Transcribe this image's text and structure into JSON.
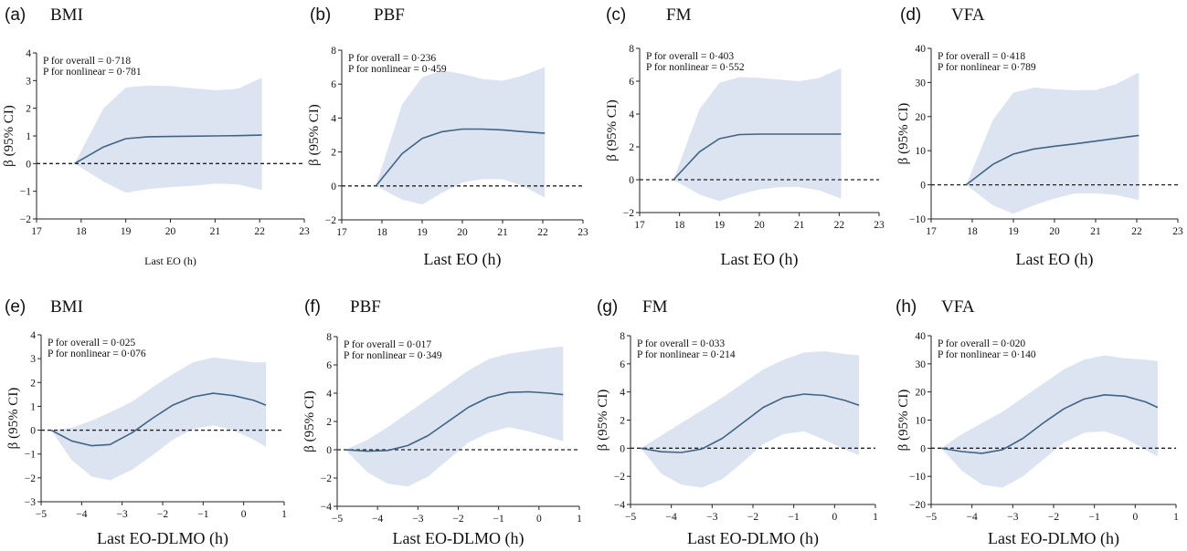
{
  "colors": {
    "band": "#dde4f1",
    "line": "#3e6485",
    "zero": "#222222",
    "axis": "#222222"
  },
  "chart_data": [
    {
      "type": "line",
      "panel": "(a)",
      "title": "BMI",
      "xlabel": "Last EO (h)",
      "ylabel": "β (95% CI)",
      "p_overall": "P for overall = 0·718",
      "p_nonlinear": "P for nonlinear = 0·781",
      "xlim": [
        17,
        23
      ],
      "ylim": [
        -2,
        4
      ],
      "xticks": [
        17,
        18,
        19,
        20,
        21,
        22,
        23
      ],
      "yticks": [
        -2,
        -1,
        0,
        1,
        2,
        3,
        4
      ],
      "x": [
        17.85,
        18.5,
        19,
        19.5,
        20,
        20.5,
        21,
        21.5,
        22.05
      ],
      "y": [
        0,
        0.6,
        0.9,
        0.97,
        0.98,
        0.99,
        1.0,
        1.01,
        1.03
      ],
      "upper": [
        0,
        2.0,
        2.75,
        2.82,
        2.8,
        2.72,
        2.65,
        2.7,
        3.1
      ],
      "lower": [
        0,
        -0.65,
        -1.05,
        -0.92,
        -0.85,
        -0.8,
        -0.72,
        -0.75,
        -0.95
      ]
    },
    {
      "type": "line",
      "panel": "(b)",
      "title": "PBF",
      "xlabel": "Last EO (h)",
      "ylabel": "β (95% CI)",
      "p_overall": "P for overall = 0·236",
      "p_nonlinear": "P for nonlinear = 0·459",
      "xlim": [
        17,
        23
      ],
      "ylim": [
        -2,
        8
      ],
      "xticks": [
        17,
        18,
        19,
        20,
        21,
        22,
        23
      ],
      "yticks": [
        -2,
        0,
        2,
        4,
        6,
        8
      ],
      "x": [
        17.85,
        18.5,
        19,
        19.5,
        20,
        20.5,
        21,
        21.5,
        22.05
      ],
      "y": [
        0,
        1.9,
        2.8,
        3.2,
        3.35,
        3.35,
        3.3,
        3.2,
        3.1
      ],
      "upper": [
        0,
        4.8,
        6.4,
        6.8,
        6.6,
        6.3,
        6.2,
        6.5,
        7.0
      ],
      "lower": [
        0,
        -0.8,
        -1.1,
        -0.4,
        0.2,
        0.4,
        0.4,
        0.0,
        -0.7
      ]
    },
    {
      "type": "line",
      "panel": "(c)",
      "title": "FM",
      "xlabel": "Last EO (h)",
      "ylabel": "β (95% CI)",
      "p_overall": "P for overall = 0·403",
      "p_nonlinear": "P for nonlinear = 0·552",
      "xlim": [
        17,
        23
      ],
      "ylim": [
        -2,
        8
      ],
      "xticks": [
        17,
        18,
        19,
        20,
        21,
        22,
        23
      ],
      "yticks": [
        -2,
        0,
        2,
        4,
        6,
        8
      ],
      "x": [
        17.85,
        18.5,
        19,
        19.5,
        20,
        20.5,
        21,
        21.5,
        22.05
      ],
      "y": [
        0,
        1.7,
        2.5,
        2.75,
        2.78,
        2.78,
        2.78,
        2.78,
        2.78
      ],
      "upper": [
        0,
        4.3,
        5.9,
        6.25,
        6.2,
        6.1,
        6.0,
        6.2,
        6.8
      ],
      "lower": [
        0,
        -0.9,
        -1.3,
        -0.9,
        -0.6,
        -0.45,
        -0.45,
        -0.65,
        -1.15
      ]
    },
    {
      "type": "line",
      "panel": "(d)",
      "title": "VFA",
      "xlabel": "Last EO (h)",
      "ylabel": "β (95% CI)",
      "p_overall": "P for overall = 0·418",
      "p_nonlinear": "P for nonlinear = 0·789",
      "xlim": [
        17,
        23
      ],
      "ylim": [
        -10,
        40
      ],
      "xticks": [
        17,
        18,
        19,
        20,
        21,
        22,
        23
      ],
      "yticks": [
        -10,
        0,
        10,
        20,
        30,
        40
      ],
      "x": [
        17.85,
        18.5,
        19,
        19.5,
        20,
        20.5,
        21,
        21.5,
        22.05
      ],
      "y": [
        0,
        6.0,
        9.0,
        10.5,
        11.3,
        12.0,
        12.8,
        13.6,
        14.5
      ],
      "upper": [
        0,
        19,
        27,
        28.5,
        28,
        27.7,
        27.8,
        29.5,
        33
      ],
      "lower": [
        0,
        -6,
        -8.5,
        -6,
        -4,
        -2.5,
        -2.5,
        -3.0,
        -4.5
      ]
    },
    {
      "type": "line",
      "panel": "(e)",
      "title": "BMI",
      "xlabel": "Last EO-DLMO (h)",
      "ylabel": "β (95% CI)",
      "p_overall": "P for overall = 0·025",
      "p_nonlinear": "P for nonlinear = 0·076",
      "xlim": [
        -5,
        1
      ],
      "ylim": [
        -3,
        4
      ],
      "xticks": [
        -5,
        -4,
        -3,
        -2,
        -1,
        0,
        1
      ],
      "yticks": [
        -3,
        -2,
        -1,
        0,
        1,
        2,
        3,
        4
      ],
      "x": [
        -4.75,
        -4.25,
        -3.75,
        -3.3,
        -2.75,
        -2.25,
        -1.75,
        -1.25,
        -0.75,
        -0.25,
        0.25,
        0.55
      ],
      "y": [
        0,
        -0.45,
        -0.65,
        -0.6,
        -0.1,
        0.5,
        1.05,
        1.4,
        1.55,
        1.45,
        1.25,
        1.05
      ],
      "upper": [
        0,
        0.1,
        0.4,
        0.75,
        1.2,
        1.8,
        2.35,
        2.85,
        3.05,
        2.95,
        2.85,
        2.85
      ],
      "lower": [
        0,
        -1.25,
        -1.95,
        -2.1,
        -1.65,
        -1.05,
        -0.4,
        0.05,
        0.2,
        0.0,
        -0.4,
        -0.7
      ]
    },
    {
      "type": "line",
      "panel": "(f)",
      "title": "PBF",
      "xlabel": "Last EO-DLMO (h)",
      "ylabel": "β (95% CI)",
      "p_overall": "P for overall = 0·017",
      "p_nonlinear": "P for nonlinear = 0·349",
      "xlim": [
        -5,
        1
      ],
      "ylim": [
        -4,
        8
      ],
      "xticks": [
        -5,
        -4,
        -3,
        -2,
        -1,
        0,
        1
      ],
      "yticks": [
        -4,
        -2,
        0,
        2,
        4,
        6,
        8
      ],
      "x": [
        -4.8,
        -4.25,
        -3.75,
        -3.25,
        -2.75,
        -2.25,
        -1.75,
        -1.25,
        -0.75,
        -0.25,
        0.25,
        0.6
      ],
      "y": [
        0,
        -0.1,
        -0.05,
        0.3,
        1.0,
        2.0,
        3.0,
        3.7,
        4.05,
        4.1,
        4.0,
        3.9
      ],
      "upper": [
        0,
        0.7,
        1.6,
        2.6,
        3.6,
        4.6,
        5.6,
        6.4,
        6.8,
        7.0,
        7.2,
        7.3
      ],
      "lower": [
        0,
        -1.6,
        -2.4,
        -2.6,
        -1.9,
        -0.7,
        0.5,
        1.2,
        1.6,
        1.3,
        0.9,
        0.6
      ]
    },
    {
      "type": "line",
      "panel": "(g)",
      "title": "FM",
      "xlabel": "Last EO-DLMO (h)",
      "ylabel": "β (95% CI)",
      "p_overall": "P for overall = 0·033",
      "p_nonlinear": "P for nonlinear = 0·214",
      "xlim": [
        -5,
        1
      ],
      "ylim": [
        -4,
        8
      ],
      "xticks": [
        -5,
        -4,
        -3,
        -2,
        -1,
        0,
        1
      ],
      "yticks": [
        -4,
        -2,
        0,
        2,
        4,
        6,
        8
      ],
      "x": [
        -4.75,
        -4.25,
        -3.75,
        -3.25,
        -2.75,
        -2.25,
        -1.75,
        -1.25,
        -0.75,
        -0.25,
        0.25,
        0.6
      ],
      "y": [
        0,
        -0.25,
        -0.3,
        -0.05,
        0.7,
        1.8,
        2.9,
        3.6,
        3.85,
        3.75,
        3.4,
        3.05
      ],
      "upper": [
        0,
        0.9,
        1.8,
        2.7,
        3.6,
        4.6,
        5.6,
        6.3,
        6.8,
        6.9,
        6.7,
        6.6
      ],
      "lower": [
        0,
        -1.8,
        -2.6,
        -2.8,
        -2.2,
        -1.0,
        0.3,
        1.0,
        1.2,
        0.6,
        -0.1,
        -0.5
      ]
    },
    {
      "type": "line",
      "panel": "(h)",
      "title": "VFA",
      "xlabel": "Last EO-DLMO (h)",
      "ylabel": "β (95% CI)",
      "p_overall": "P for overall = 0·020",
      "p_nonlinear": "P for nonlinear = 0·140",
      "xlim": [
        -5,
        1
      ],
      "ylim": [
        -20,
        40
      ],
      "xticks": [
        -5,
        -4,
        -3,
        -2,
        -1,
        0,
        1
      ],
      "yticks": [
        -20,
        -10,
        0,
        10,
        20,
        30,
        40
      ],
      "x": [
        -4.75,
        -4.25,
        -3.75,
        -3.25,
        -2.75,
        -2.25,
        -1.75,
        -1.25,
        -0.75,
        -0.25,
        0.25,
        0.55
      ],
      "y": [
        0,
        -1.2,
        -1.8,
        -0.5,
        3.5,
        9.0,
        14.0,
        17.5,
        19.0,
        18.5,
        16.5,
        14.5
      ],
      "upper": [
        0,
        5,
        9,
        13,
        18,
        23,
        28,
        31.5,
        33,
        32,
        31.5,
        31
      ],
      "lower": [
        0,
        -8,
        -13,
        -14,
        -10,
        -4,
        2,
        5.5,
        6,
        3.5,
        -0.5,
        -3
      ]
    }
  ]
}
